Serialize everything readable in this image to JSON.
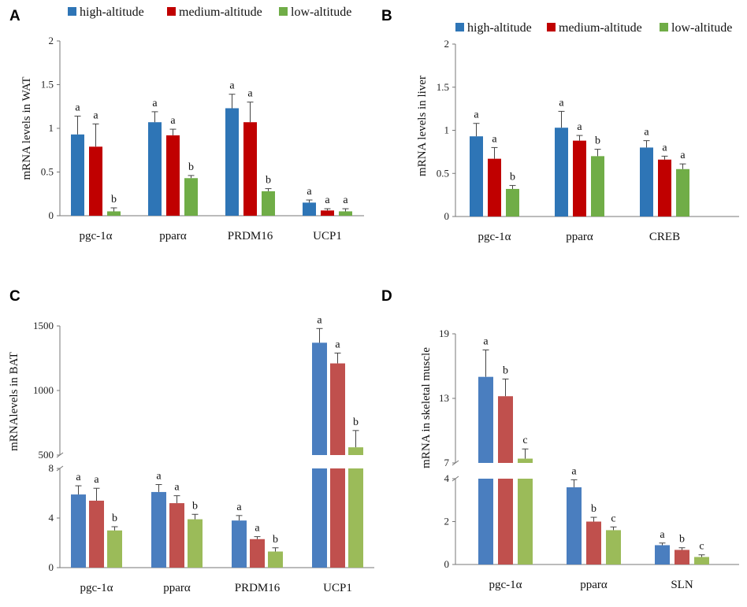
{
  "legend": {
    "labels": [
      "high-altitude",
      "medium-altitude",
      "low-altitude"
    ],
    "colors": [
      "#2e75b6",
      "#c00000",
      "#70ad47"
    ]
  },
  "chart_data": [
    {
      "panel": "A",
      "type": "bar",
      "ylabel": "mRNA levels in WAT",
      "ylim": [
        0,
        2
      ],
      "yticks": [
        0,
        0.5,
        1,
        1.5,
        2
      ],
      "categories": [
        "pgc-1α",
        "pparα",
        "PRDM16",
        "UCP1"
      ],
      "colors": [
        "#2e75b6",
        "#c00000",
        "#70ad47"
      ],
      "series": [
        {
          "name": "high-altitude",
          "values": [
            0.93,
            1.07,
            1.23,
            0.15
          ],
          "errors": [
            0.21,
            0.12,
            0.16,
            0.03
          ],
          "sig": [
            "a",
            "a",
            "a",
            "a"
          ]
        },
        {
          "name": "medium-altitude",
          "values": [
            0.79,
            0.92,
            1.07,
            0.06
          ],
          "errors": [
            0.26,
            0.07,
            0.23,
            0.02
          ],
          "sig": [
            "a",
            "a",
            "a",
            "a"
          ]
        },
        {
          "name": "low-altitude",
          "values": [
            0.05,
            0.43,
            0.28,
            0.05
          ],
          "errors": [
            0.04,
            0.03,
            0.03,
            0.03
          ],
          "sig": [
            "b",
            "b",
            "b",
            "a"
          ]
        }
      ]
    },
    {
      "panel": "B",
      "type": "bar",
      "ylabel": "mRNA levels in liver",
      "ylim": [
        0,
        2
      ],
      "yticks": [
        0,
        0.5,
        1,
        1.5,
        2
      ],
      "categories": [
        "pgc-1α",
        "pparα",
        "CREB"
      ],
      "colors": [
        "#2e75b6",
        "#c00000",
        "#70ad47"
      ],
      "series": [
        {
          "name": "high-altitude",
          "values": [
            0.93,
            1.03,
            0.8
          ],
          "errors": [
            0.15,
            0.19,
            0.08
          ],
          "sig": [
            "a",
            "a",
            "a"
          ]
        },
        {
          "name": "medium-altitude",
          "values": [
            0.67,
            0.88,
            0.66
          ],
          "errors": [
            0.13,
            0.06,
            0.04
          ],
          "sig": [
            "a",
            "a",
            "a"
          ]
        },
        {
          "name": "low-altitude",
          "values": [
            0.32,
            0.7,
            0.55
          ],
          "errors": [
            0.04,
            0.08,
            0.06
          ],
          "sig": [
            "b",
            "b",
            "a"
          ]
        }
      ]
    },
    {
      "panel": "C",
      "type": "bar",
      "ylabel": "mRNAlevels in BAT",
      "broken_axis": {
        "lower": [
          0,
          8
        ],
        "upper": [
          500,
          1500
        ]
      },
      "yticks_lower": [
        0,
        4,
        8
      ],
      "yticks_upper": [
        500,
        1000,
        1500
      ],
      "categories": [
        "pgc-1α",
        "pparα",
        "PRDM16",
        "UCP1"
      ],
      "colors": [
        "#4a7ebf",
        "#c0504d",
        "#9bbb59"
      ],
      "series": [
        {
          "name": "high-altitude",
          "values": [
            5.9,
            6.1,
            3.8,
            1370
          ],
          "errors": [
            0.7,
            0.6,
            0.4,
            110
          ],
          "sig": [
            "a",
            "a",
            "a",
            "a"
          ]
        },
        {
          "name": "medium-altitude",
          "values": [
            5.4,
            5.2,
            2.3,
            1210
          ],
          "errors": [
            1.0,
            0.6,
            0.2,
            80
          ],
          "sig": [
            "a",
            "a",
            "a",
            "a"
          ]
        },
        {
          "name": "low-altitude",
          "values": [
            3.0,
            3.9,
            1.3,
            560
          ],
          "errors": [
            0.3,
            0.4,
            0.3,
            130
          ],
          "sig": [
            "b",
            "b",
            "b",
            "b"
          ]
        }
      ]
    },
    {
      "panel": "D",
      "type": "bar",
      "ylabel": "mRNA in skeletal muscle",
      "broken_axis": {
        "lower": [
          0,
          4
        ],
        "upper": [
          7,
          19
        ]
      },
      "yticks_lower": [
        0,
        2,
        4
      ],
      "yticks_upper": [
        7,
        13,
        19
      ],
      "categories": [
        "pgc-1α",
        "pparα",
        "SLN"
      ],
      "colors": [
        "#4a7ebf",
        "#c0504d",
        "#9bbb59"
      ],
      "series": [
        {
          "name": "high-altitude",
          "values": [
            15.0,
            3.6,
            0.9
          ],
          "errors": [
            2.5,
            0.35,
            0.1
          ],
          "sig": [
            "a",
            "a",
            "a"
          ]
        },
        {
          "name": "medium-altitude",
          "values": [
            13.2,
            2.0,
            0.68
          ],
          "errors": [
            1.6,
            0.2,
            0.1
          ],
          "sig": [
            "b",
            "b",
            "b"
          ]
        },
        {
          "name": "low-altitude",
          "values": [
            7.4,
            1.6,
            0.35
          ],
          "errors": [
            0.9,
            0.15,
            0.1
          ],
          "sig": [
            "c",
            "c",
            "c"
          ]
        }
      ]
    }
  ]
}
